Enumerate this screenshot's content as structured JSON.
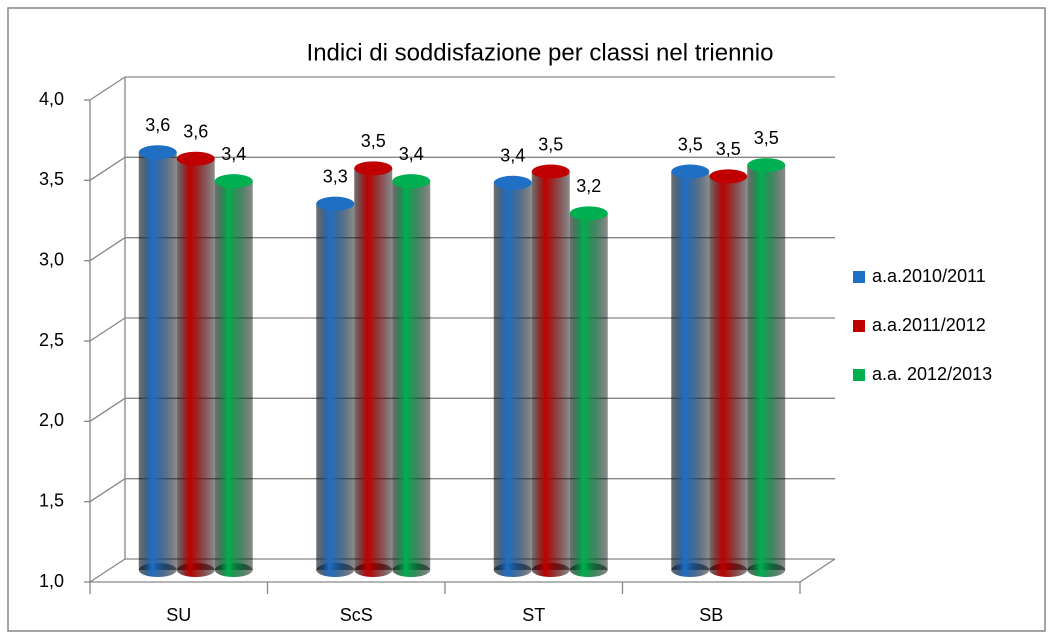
{
  "chart_data": {
    "type": "bar",
    "title": "Indici di soddisfazione per classi nel triennio",
    "categories": [
      "SU",
      "ScS",
      "ST",
      "SB"
    ],
    "series": [
      {
        "name": "a.a.2010/2011",
        "color": "#1f6fc5",
        "values": [
          3.6,
          3.28,
          3.41,
          3.48
        ],
        "value_labels": [
          "3,6",
          "3,3",
          "3,4",
          "3,5"
        ]
      },
      {
        "name": "a.a.2011/2012",
        "color": "#c00000",
        "values": [
          3.56,
          3.5,
          3.48,
          3.45
        ],
        "value_labels": [
          "3,6",
          "3,5",
          "3,5",
          "3,5"
        ]
      },
      {
        "name": "a.a. 2012/2013",
        "color": "#00b050",
        "values": [
          3.42,
          3.42,
          3.22,
          3.52
        ],
        "value_labels": [
          "3,4",
          "3,4",
          "3,2",
          "3,5"
        ]
      }
    ],
    "ylim": [
      1.0,
      4.0
    ],
    "yticks": [
      {
        "value": 1.0,
        "label": "1,0"
      },
      {
        "value": 1.5,
        "label": "1,5"
      },
      {
        "value": 2.0,
        "label": "2,0"
      },
      {
        "value": 2.5,
        "label": "2,5"
      },
      {
        "value": 3.0,
        "label": "3,0"
      },
      {
        "value": 3.5,
        "label": "3,5"
      },
      {
        "value": 4.0,
        "label": "4,0"
      }
    ],
    "grid": true,
    "legend": "right"
  }
}
